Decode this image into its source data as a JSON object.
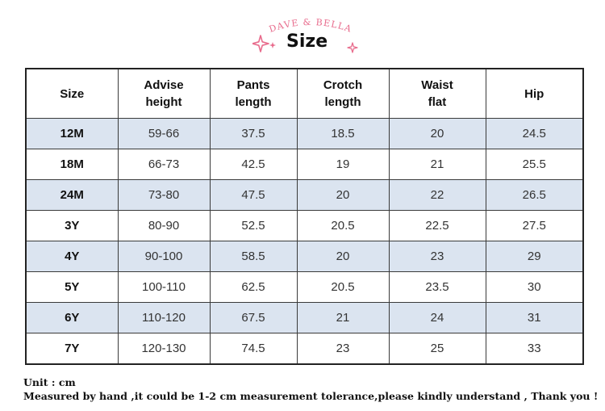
{
  "header": {
    "brand": "DAVE & BELLA",
    "title": "Size",
    "accent_color": "#e86b8c",
    "icons": [
      "sparkle-icon",
      "sparkle-icon"
    ]
  },
  "table": {
    "columns": [
      {
        "line1": "Size",
        "line2": ""
      },
      {
        "line1": "Advise",
        "line2": "height"
      },
      {
        "line1": "Pants",
        "line2": "length"
      },
      {
        "line1": "Crotch",
        "line2": "length"
      },
      {
        "line1": "Waist",
        "line2": "flat"
      },
      {
        "line1": "Hip",
        "line2": ""
      }
    ],
    "rows": [
      [
        "12M",
        "59-66",
        "37.5",
        "18.5",
        "20",
        "24.5"
      ],
      [
        "18M",
        "66-73",
        "42.5",
        "19",
        "21",
        "25.5"
      ],
      [
        "24M",
        "73-80",
        "47.5",
        "20",
        "22",
        "26.5"
      ],
      [
        "3Y",
        "80-90",
        "52.5",
        "20.5",
        "22.5",
        "27.5"
      ],
      [
        "4Y",
        "90-100",
        "58.5",
        "20",
        "23",
        "29"
      ],
      [
        "5Y",
        "100-110",
        "62.5",
        "20.5",
        "23.5",
        "30"
      ],
      [
        "6Y",
        "110-120",
        "67.5",
        "21",
        "24",
        "31"
      ],
      [
        "7Y",
        "120-130",
        "74.5",
        "23",
        "25",
        "33"
      ]
    ],
    "shade_color": "#dbe4f0"
  },
  "footer": {
    "unit": "Unit : cm",
    "note": "Measured by hand ,it could be 1-2 cm measurement tolerance,please kindly understand , Thank you !"
  }
}
